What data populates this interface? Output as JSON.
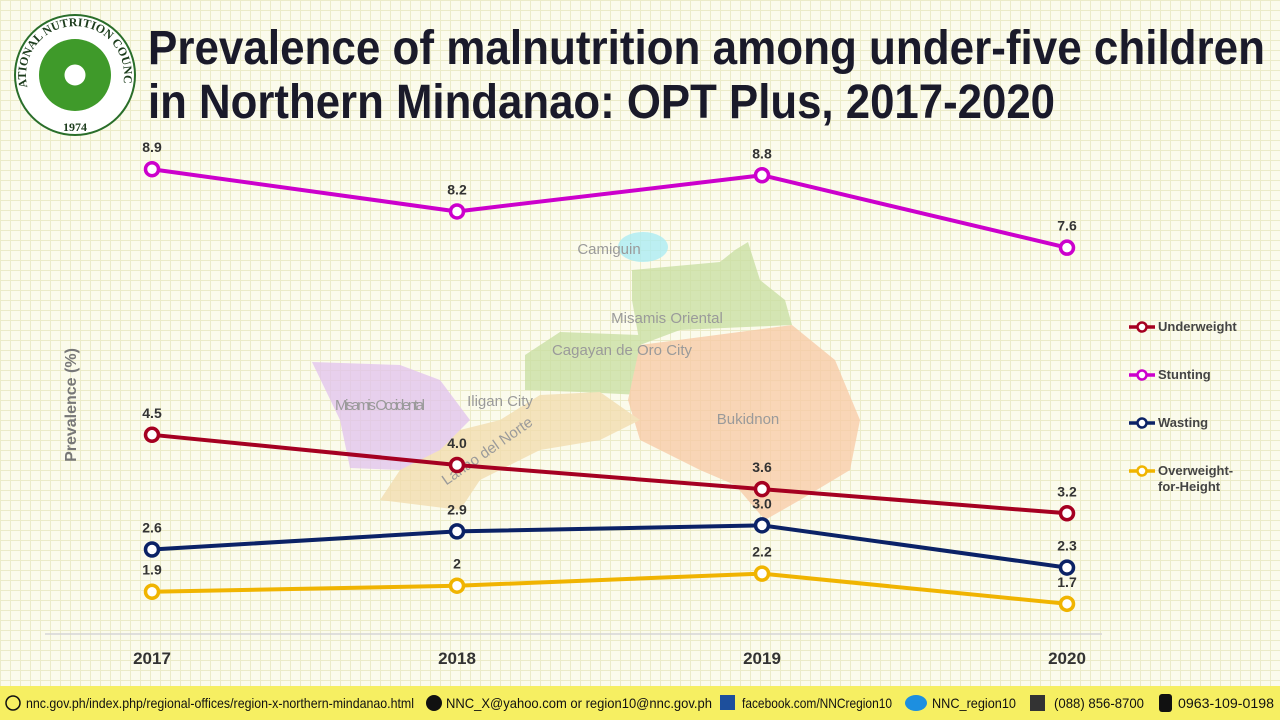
{
  "chart_data": {
    "type": "line",
    "title": [
      "Prevalence of malnutrition among under-five children",
      "in Northern Mindanao: OPT Plus, 2017-2020"
    ],
    "y_label": "Prevalence (%)",
    "categories": [
      "2017",
      "2018",
      "2019",
      "2020"
    ],
    "ylim": [
      1.2,
      9.5
    ],
    "legend": "right",
    "series": [
      {
        "name": "Underweight",
        "color": "#a50021",
        "values": [
          4.5,
          4.0,
          3.6,
          3.2
        ],
        "value_labels": [
          "4.5",
          "4.0",
          "3.6",
          "3.2"
        ]
      },
      {
        "name": "Stunting",
        "color": "#cc00cc",
        "values": [
          8.9,
          8.2,
          8.8,
          7.6
        ]
      },
      {
        "name": "Wasting",
        "color": "#0b2266",
        "values": [
          2.6,
          2.9,
          3.0,
          2.3
        ],
        "value_labels": [
          "2.6",
          "2.9",
          "3.0",
          "2.3"
        ]
      },
      {
        "name": "Overweight-for-Height",
        "color": "#f0b400",
        "values": [
          1.9,
          2.0,
          2.2,
          1.7
        ]
      }
    ]
  },
  "logo": {
    "name": "NATIONAL NUTRITION COUNCIL",
    "year": "1974"
  },
  "map_labels": [
    "Camiguin",
    "Misamis Oriental",
    "Cagayan de Oro City",
    "Misamis Occidental",
    "Iligan City",
    "Lanao del Norte",
    "Bukidnon"
  ],
  "footer": {
    "website": "nnc.gov.ph/index.php/regional-offices/region-x-northern-mindanao.html",
    "email": "NNC_X@yahoo.com or region10@nnc.gov.ph",
    "facebook": "facebook.com/NNCregion10",
    "twitter": "NNC_region10",
    "phone": "(088) 856-8700",
    "mobile": "0963-109-0198"
  }
}
